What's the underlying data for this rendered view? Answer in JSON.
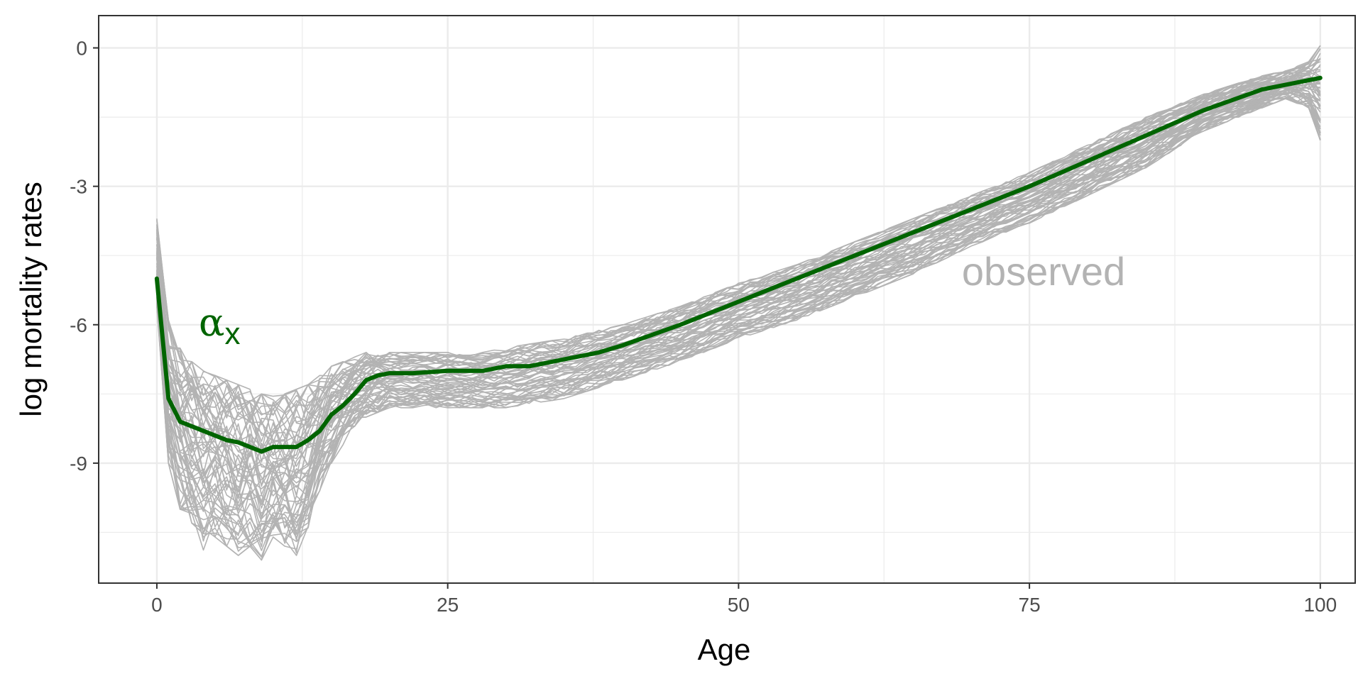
{
  "chart_data": {
    "type": "line",
    "title": "",
    "xlabel": "Age",
    "ylabel": "log mortality rates",
    "xlim": [
      -5,
      103
    ],
    "ylim": [
      -11.6,
      0.7
    ],
    "x_ticks": [
      0,
      25,
      50,
      75,
      100
    ],
    "y_ticks": [
      0,
      -3,
      -6,
      -9
    ],
    "grid": true,
    "legend": "none",
    "annotations": {
      "observed": "observed",
      "alpha_symbol": "α",
      "alpha_subscript": "x"
    },
    "colors": {
      "observed": "#b3b3b3",
      "alpha": "#006400",
      "grid": "#ebebeb",
      "panel_border": "#333333"
    },
    "observed_band": {
      "description_free": true,
      "x": [
        0,
        1,
        2,
        3,
        4,
        5,
        6,
        7,
        8,
        9,
        10,
        11,
        12,
        13,
        14,
        15,
        16,
        17,
        18,
        19,
        20,
        22,
        25,
        28,
        30,
        35,
        40,
        45,
        50,
        55,
        60,
        65,
        70,
        75,
        80,
        85,
        90,
        95,
        97,
        99,
        100
      ],
      "upper": [
        -3.7,
        -5.9,
        -6.5,
        -6.8,
        -7.0,
        -7.1,
        -7.2,
        -7.3,
        -7.4,
        -7.5,
        -7.55,
        -7.5,
        -7.4,
        -7.3,
        -7.1,
        -6.9,
        -6.8,
        -6.7,
        -6.6,
        -6.6,
        -6.6,
        -6.6,
        -6.6,
        -6.6,
        -6.5,
        -6.3,
        -6.0,
        -5.6,
        -5.1,
        -4.7,
        -4.2,
        -3.7,
        -3.2,
        -2.7,
        -2.1,
        -1.5,
        -1.0,
        -0.6,
        -0.5,
        -0.3,
        0.05
      ],
      "lower": [
        -5.6,
        -9.0,
        -10.0,
        -10.3,
        -10.9,
        -10.6,
        -10.8,
        -11.0,
        -10.8,
        -11.1,
        -10.6,
        -10.8,
        -11.0,
        -10.4,
        -9.6,
        -9.0,
        -8.6,
        -8.2,
        -8.0,
        -7.9,
        -7.8,
        -7.8,
        -7.8,
        -7.8,
        -7.8,
        -7.6,
        -7.2,
        -6.8,
        -6.3,
        -5.9,
        -5.4,
        -4.9,
        -4.3,
        -3.8,
        -3.2,
        -2.6,
        -1.8,
        -1.3,
        -1.1,
        -1.3,
        -2.0
      ]
    },
    "series": [
      {
        "name": "αx",
        "x": [
          0,
          1,
          2,
          3,
          4,
          5,
          6,
          7,
          8,
          9,
          10,
          11,
          12,
          13,
          14,
          15,
          16,
          17,
          18,
          19,
          20,
          22,
          25,
          28,
          30,
          32,
          35,
          38,
          40,
          45,
          50,
          55,
          60,
          65,
          70,
          75,
          80,
          85,
          90,
          95,
          98,
          100
        ],
        "values": [
          -5.0,
          -7.6,
          -8.1,
          -8.2,
          -8.3,
          -8.4,
          -8.5,
          -8.55,
          -8.65,
          -8.75,
          -8.65,
          -8.65,
          -8.65,
          -8.5,
          -8.3,
          -7.95,
          -7.75,
          -7.5,
          -7.2,
          -7.1,
          -7.05,
          -7.05,
          -7.0,
          -7.0,
          -6.9,
          -6.9,
          -6.75,
          -6.6,
          -6.45,
          -6.0,
          -5.5,
          -5.0,
          -4.5,
          -4.0,
          -3.5,
          -3.0,
          -2.45,
          -1.9,
          -1.35,
          -0.9,
          -0.75,
          -0.65
        ]
      }
    ]
  }
}
